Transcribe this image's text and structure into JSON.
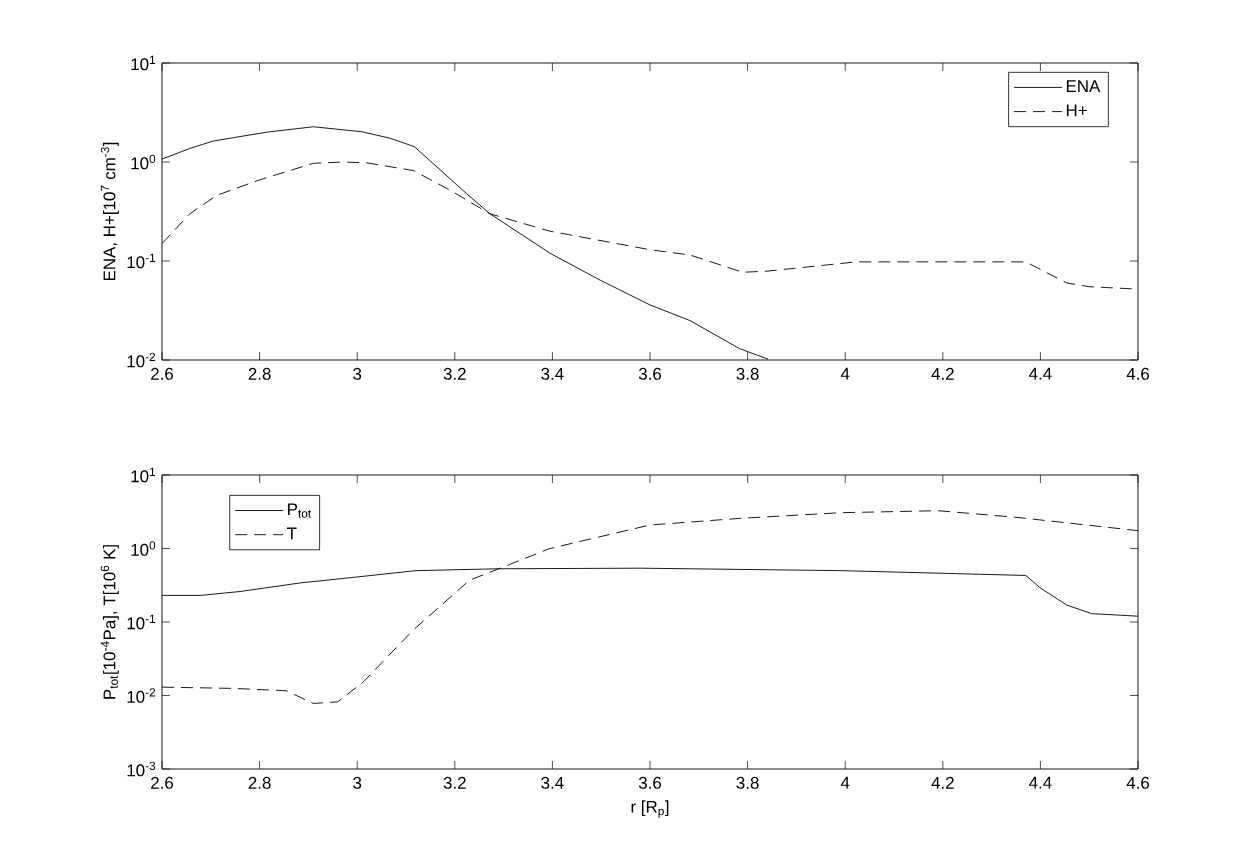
{
  "chart_data": [
    {
      "type": "line",
      "ylabel": "ENA, H+[10$^{7}$ cm$^{-3}$]",
      "log": "y",
      "legend": "top right",
      "xlim": [
        2.6,
        4.6
      ],
      "xticks": [
        2.6,
        2.8,
        3,
        3.2,
        3.4,
        3.6,
        3.8,
        4,
        4.2,
        4.4,
        4.6
      ],
      "ylim": [
        0.01,
        10
      ],
      "yticks": [
        {
          "value": 0.01,
          "label": "10$^{-2}$"
        },
        {
          "value": 0.1,
          "label": "10$^{-1}$"
        },
        {
          "value": 1,
          "label": "10$^{0}$"
        },
        {
          "value": 10,
          "label": "10$^{1}$"
        }
      ],
      "series": [
        {
          "name": "ENA",
          "color": "#000000",
          "line_style": "solid",
          "x": [
            2.6,
            2.657,
            2.705,
            2.814,
            2.91,
            3.01,
            3.067,
            3.117,
            3.224,
            3.272,
            3.395,
            3.498,
            3.6,
            3.682,
            3.784,
            3.842
          ],
          "values": [
            1.07,
            1.37,
            1.63,
            2.0,
            2.27,
            2.02,
            1.74,
            1.43,
            0.48,
            0.3,
            0.12,
            0.064,
            0.036,
            0.025,
            0.013,
            0.0102
          ]
        },
        {
          "name": "H+",
          "color": "#000000",
          "line_style": "dashed",
          "x": [
            2.6,
            2.657,
            2.712,
            2.8,
            2.91,
            2.97,
            3.02,
            3.115,
            3.19,
            3.272,
            3.395,
            3.6,
            3.682,
            3.79,
            3.84,
            4.023,
            4.37,
            4.454,
            4.5,
            4.6
          ],
          "values": [
            0.15,
            0.3,
            0.46,
            0.66,
            0.97,
            1.0,
            0.98,
            0.82,
            0.52,
            0.3,
            0.2,
            0.13,
            0.115,
            0.077,
            0.079,
            0.098,
            0.098,
            0.06,
            0.055,
            0.052
          ]
        }
      ]
    },
    {
      "type": "line",
      "xlabel": "r [R$_{p}$]",
      "ylabel": "P$_{tot}$[10$^{-4}$Pa], T[10$^{6}$ K]",
      "log": "y",
      "legend": "top left",
      "xlim": [
        2.6,
        4.6
      ],
      "xticks": [
        2.6,
        2.8,
        3,
        3.2,
        3.4,
        3.6,
        3.8,
        4,
        4.2,
        4.4,
        4.6
      ],
      "ylim": [
        0.001,
        10
      ],
      "yticks": [
        {
          "value": 0.001,
          "label": "10$^{-3}$"
        },
        {
          "value": 0.01,
          "label": "10$^{-2}$"
        },
        {
          "value": 0.1,
          "label": "10$^{-1}$"
        },
        {
          "value": 1,
          "label": "10$^{0}$"
        },
        {
          "value": 10,
          "label": "10$^{1}$"
        }
      ],
      "series": [
        {
          "name": "P$_{tot}$",
          "color": "#000000",
          "line_style": "solid",
          "x": [
            2.6,
            2.678,
            2.76,
            2.883,
            3.0,
            3.12,
            3.29,
            3.58,
            3.99,
            4.37,
            4.4,
            4.454,
            4.505,
            4.6
          ],
          "values": [
            0.23,
            0.23,
            0.26,
            0.34,
            0.41,
            0.5,
            0.53,
            0.54,
            0.5,
            0.43,
            0.29,
            0.17,
            0.13,
            0.12
          ]
        },
        {
          "name": "T",
          "color": "#000000",
          "line_style": "dashed",
          "x": [
            2.6,
            2.745,
            2.855,
            2.91,
            2.96,
            3.013,
            3.115,
            3.23,
            3.29,
            3.395,
            3.6,
            3.784,
            3.99,
            4.19,
            4.35,
            4.6
          ],
          "values": [
            0.013,
            0.0125,
            0.0116,
            0.0078,
            0.0082,
            0.0154,
            0.078,
            0.37,
            0.53,
            1.0,
            2.09,
            2.57,
            3.07,
            3.27,
            2.66,
            1.75
          ]
        }
      ]
    }
  ]
}
